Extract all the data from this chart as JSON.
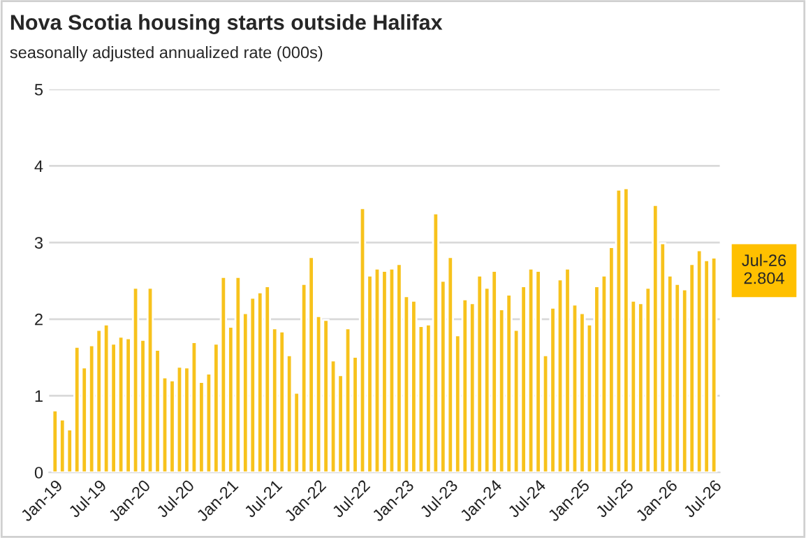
{
  "chart_data": {
    "type": "bar",
    "title": "Nova Scotia housing starts outside Halifax",
    "subtitle": "seasonally adjusted annualized rate (000s)",
    "categories": [
      "Jan-19",
      null,
      null,
      null,
      null,
      null,
      "Jul-19",
      null,
      null,
      null,
      null,
      null,
      "Jan-20",
      null,
      null,
      null,
      null,
      null,
      "Jul-20",
      null,
      null,
      null,
      null,
      null,
      "Jan-21",
      null,
      null,
      null,
      null,
      null,
      "Jul-21",
      null,
      null,
      null,
      null,
      null,
      "Jan-22",
      null,
      null,
      null,
      null,
      null,
      "Jul-22",
      null,
      null,
      null,
      null,
      null,
      "Jan-23",
      null,
      null,
      null,
      null,
      null,
      "Jul-23",
      null,
      null,
      null,
      null,
      null,
      "Jan-24",
      null,
      null,
      null,
      null,
      null,
      "Jul-24",
      null,
      null,
      null,
      null,
      null,
      "Jan-25",
      null,
      null,
      null,
      null,
      null,
      "Jul-25",
      null,
      null,
      null,
      null,
      null,
      "Jan-26",
      null,
      null,
      null,
      null,
      null,
      "Jul-26"
    ],
    "values": [
      0.81,
      0.69,
      0.56,
      1.64,
      1.37,
      1.66,
      1.86,
      1.93,
      1.68,
      1.77,
      1.75,
      2.41,
      1.73,
      2.41,
      1.6,
      1.24,
      1.2,
      1.38,
      1.37,
      1.7,
      1.18,
      1.29,
      1.68,
      2.55,
      1.9,
      2.55,
      2.08,
      2.28,
      2.35,
      2.43,
      1.88,
      1.84,
      1.53,
      1.04,
      2.46,
      2.81,
      2.04,
      1.99,
      1.46,
      1.27,
      1.88,
      1.51,
      3.45,
      2.57,
      2.66,
      2.63,
      2.66,
      2.72,
      2.3,
      2.24,
      1.91,
      1.93,
      3.38,
      2.5,
      2.81,
      1.79,
      2.26,
      2.21,
      2.57,
      2.41,
      2.63,
      2.13,
      2.32,
      1.86,
      2.43,
      2.66,
      2.63,
      1.53,
      2.15,
      2.52,
      2.66,
      2.19,
      2.08,
      1.93,
      2.43,
      2.57,
      2.94,
      3.69,
      3.71,
      2.24,
      2.21,
      2.41,
      3.49,
      2.99,
      2.57,
      2.46,
      2.39,
      2.72,
      2.9,
      2.77,
      2.804
    ],
    "color": "#f7c21c",
    "ylim": [
      0,
      5
    ],
    "yticks": [
      0,
      1,
      2,
      3,
      4,
      5
    ],
    "grid": "y",
    "annotations": [
      "Jul-26\n2.804"
    ]
  }
}
